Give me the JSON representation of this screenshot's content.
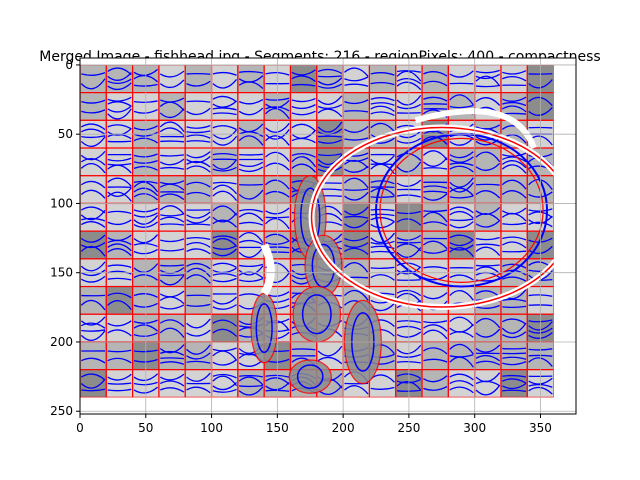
{
  "chart_data": {
    "type": "heatmap",
    "title": "Merged Image - fishhead.jpg - Segments: 216 - regionPixels: 400 - compactness",
    "xlabel": "",
    "ylabel": "",
    "xlim": [
      0,
      377
    ],
    "ylim": [
      252,
      -5
    ],
    "image_extent": {
      "width": 360,
      "height": 240
    },
    "x_ticks": [
      0,
      50,
      100,
      150,
      200,
      250,
      300,
      350
    ],
    "y_ticks": [
      0,
      50,
      100,
      150,
      200,
      250
    ],
    "grid": true,
    "grid_cell": {
      "width": 20,
      "height": 20
    },
    "segment_count": 216,
    "colors": {
      "segment_boundary": "#ff0000",
      "flow_curves": "#0000ff",
      "grid": "#b0b0b0",
      "light_region": "#d3d3d3",
      "mid_region": "#b5b5b5",
      "dark_region": "#8c8c8c",
      "highlight": "#ffffff"
    }
  }
}
